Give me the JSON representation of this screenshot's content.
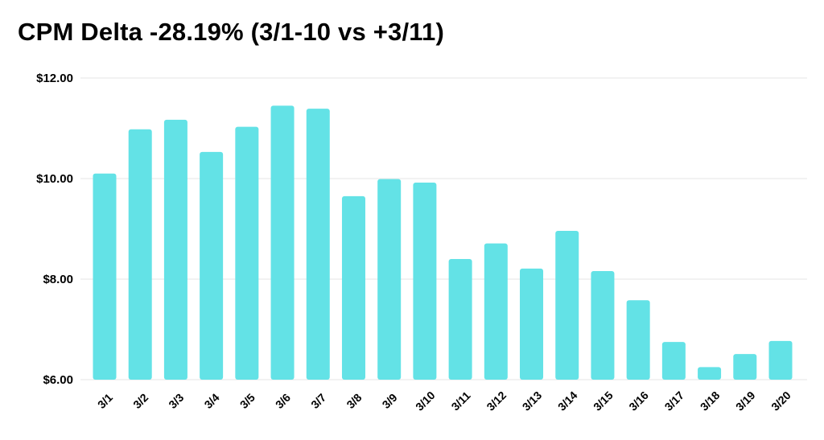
{
  "chart_data": {
    "type": "bar",
    "title": "CPM Delta -28.19% (3/1-10 vs +3/11)",
    "xlabel": "",
    "ylabel": "",
    "categories": [
      "3/1",
      "3/2",
      "3/3",
      "3/4",
      "3/5",
      "3/6",
      "3/7",
      "3/8",
      "3/9",
      "3/10",
      "3/11",
      "3/12",
      "3/13",
      "3/14",
      "3/15",
      "3/16",
      "3/17",
      "3/18",
      "3/19",
      "3/20"
    ],
    "values": [
      10.1,
      10.98,
      11.17,
      10.53,
      11.03,
      11.45,
      11.39,
      9.65,
      9.99,
      9.92,
      8.4,
      8.71,
      8.21,
      8.96,
      8.16,
      7.58,
      6.75,
      6.25,
      6.51,
      6.77
    ],
    "ylim": [
      6,
      12
    ],
    "yticks": [
      {
        "value": 6,
        "label": "$6.00"
      },
      {
        "value": 8,
        "label": "$8.00"
      },
      {
        "value": 10,
        "label": "$10.00"
      },
      {
        "value": 12,
        "label": "$12.00"
      }
    ],
    "grid": true,
    "colors": {
      "bar": "#63e2e6",
      "grid": "#e6e6e6"
    }
  }
}
